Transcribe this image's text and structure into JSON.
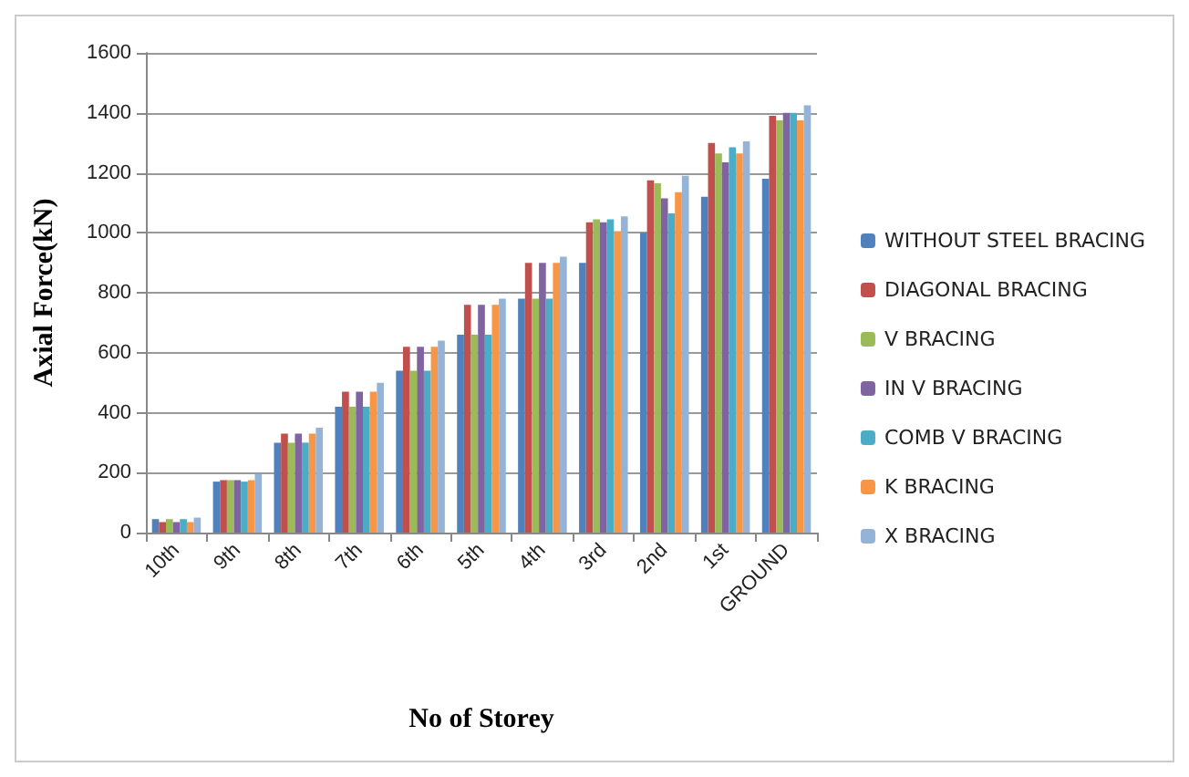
{
  "chart_data": {
    "type": "bar",
    "xlabel": "No of Storey",
    "ylabel": "Axial Force(kN)",
    "categories": [
      "10th",
      "9th",
      "8th",
      "7th",
      "6th",
      "5th",
      "4th",
      "3rd",
      "2nd",
      "1st",
      "GROUND"
    ],
    "series": [
      {
        "name": "WITHOUT STEEL BRACING",
        "color": "#4f81bd",
        "values": [
          45,
          170,
          300,
          420,
          540,
          660,
          780,
          900,
          1000,
          1120,
          1180
        ]
      },
      {
        "name": "DIAGONAL BRACING",
        "color": "#c0504d",
        "values": [
          35,
          175,
          330,
          470,
          620,
          760,
          900,
          1035,
          1175,
          1300,
          1390
        ]
      },
      {
        "name": "V BRACING",
        "color": "#9bbb59",
        "values": [
          45,
          175,
          300,
          420,
          540,
          660,
          780,
          1045,
          1165,
          1265,
          1375
        ]
      },
      {
        "name": "IN V BRACING",
        "color": "#8064a2",
        "values": [
          35,
          175,
          330,
          470,
          620,
          760,
          900,
          1035,
          1115,
          1235,
          1400
        ]
      },
      {
        "name": "COMB V BRACING",
        "color": "#4bacc6",
        "values": [
          45,
          170,
          300,
          420,
          540,
          660,
          780,
          1045,
          1065,
          1285,
          1400
        ]
      },
      {
        "name": "K BRACING",
        "color": "#f79646",
        "values": [
          35,
          175,
          330,
          470,
          620,
          760,
          900,
          1005,
          1135,
          1265,
          1375
        ]
      },
      {
        "name": "X BRACING",
        "color": "#95b3d7",
        "values": [
          50,
          195,
          350,
          500,
          640,
          780,
          920,
          1055,
          1190,
          1305,
          1425
        ]
      }
    ],
    "ylim": [
      0,
      1600
    ],
    "yticks": [
      0,
      200,
      400,
      600,
      800,
      1000,
      1200,
      1400,
      1600
    ],
    "grid": "y",
    "legend": "right"
  }
}
